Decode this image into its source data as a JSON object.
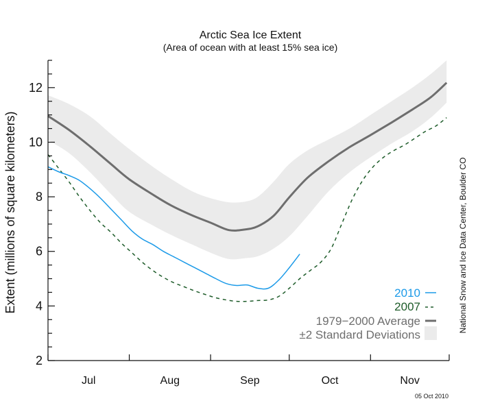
{
  "chart_data": {
    "type": "line",
    "title": "Arctic Sea Ice Extent",
    "subtitle": "(Area of ocean with at least 15% sea ice)",
    "xlabel": "",
    "ylabel": "Extent (millions of square kilometers)",
    "x_unit": "days since Jul 1",
    "xlim": [
      0,
      153
    ],
    "ylim": [
      2,
      13
    ],
    "yticks": [
      2,
      4,
      6,
      8,
      10,
      12
    ],
    "yticks_minor_step": 0.5,
    "month_boundaries": [
      0,
      31,
      62,
      92,
      123,
      153
    ],
    "month_labels": [
      "Jul",
      "Aug",
      "Sep",
      "Oct",
      "Nov"
    ],
    "grid": false,
    "legend_position": "bottom-right",
    "credit": "National Snow and Ice Data Center, Boulder CO",
    "date_stamp": "05 Oct 2010",
    "colors": {
      "2010": "#1b9ae8",
      "2007": "#1e5c2a",
      "average": "#6e6e6e",
      "band": "#ebebeb"
    },
    "legend": [
      {
        "label": "2010",
        "key": "2010",
        "style": "solid"
      },
      {
        "label": "2007",
        "key": "2007",
        "style": "dashed"
      },
      {
        "label": "1979−2000 Average",
        "key": "average",
        "style": "thick"
      },
      {
        "label": "±2 Standard Deviations",
        "key": "band",
        "style": "box"
      }
    ],
    "series": [
      {
        "name": "1979-2000 Average",
        "x": [
          0,
          8,
          16,
          24,
          31,
          40,
          47,
          55,
          62,
          69,
          75,
          80,
          86,
          92,
          99,
          107,
          115,
          123,
          131,
          139,
          146,
          152
        ],
        "values": [
          10.96,
          10.45,
          9.85,
          9.2,
          8.64,
          8.08,
          7.68,
          7.32,
          7.05,
          6.78,
          6.8,
          6.92,
          7.3,
          7.98,
          8.7,
          9.3,
          9.82,
          10.26,
          10.72,
          11.2,
          11.65,
          12.18
        ]
      },
      {
        "name": "+2 Std Dev",
        "x": [
          0,
          8,
          16,
          24,
          31,
          40,
          47,
          55,
          62,
          69,
          75,
          80,
          86,
          92,
          99,
          107,
          115,
          123,
          131,
          139,
          146,
          152
        ],
        "values": [
          11.72,
          11.4,
          10.95,
          10.3,
          9.75,
          9.1,
          8.65,
          8.2,
          7.95,
          7.8,
          7.82,
          8.0,
          8.55,
          9.2,
          9.7,
          10.1,
          10.5,
          11.0,
          11.5,
          12.0,
          12.5,
          13.0
        ]
      },
      {
        "name": "-2 Std Dev",
        "x": [
          0,
          8,
          16,
          24,
          31,
          40,
          47,
          55,
          62,
          69,
          75,
          80,
          86,
          92,
          99,
          107,
          115,
          123,
          131,
          139,
          146,
          152
        ],
        "values": [
          10.08,
          9.6,
          8.9,
          8.1,
          7.45,
          6.95,
          6.6,
          6.25,
          5.95,
          5.72,
          5.75,
          5.82,
          6.1,
          6.55,
          7.3,
          8.2,
          8.9,
          9.45,
          9.95,
          10.4,
          10.9,
          11.45
        ]
      },
      {
        "name": "2010",
        "x": [
          0,
          4,
          8,
          12,
          16,
          20,
          24,
          28,
          32,
          36,
          40,
          44,
          48,
          52,
          56,
          60,
          64,
          68,
          72,
          76,
          80,
          84,
          88,
          92,
          96
        ],
        "values": [
          9.1,
          8.92,
          8.78,
          8.6,
          8.3,
          7.95,
          7.55,
          7.15,
          6.75,
          6.45,
          6.25,
          6.0,
          5.8,
          5.6,
          5.4,
          5.2,
          5.0,
          4.82,
          4.75,
          4.77,
          4.65,
          4.65,
          4.95,
          5.4,
          5.9
        ]
      },
      {
        "name": "2007",
        "x": [
          0,
          4,
          8,
          12,
          16,
          20,
          24,
          28,
          32,
          36,
          40,
          44,
          48,
          52,
          56,
          60,
          64,
          68,
          72,
          76,
          80,
          84,
          88,
          92,
          96,
          100,
          104,
          108,
          112,
          116,
          120,
          124,
          128,
          132,
          136,
          140,
          144,
          148,
          152
        ],
        "values": [
          9.55,
          9.05,
          8.55,
          8.0,
          7.5,
          7.05,
          6.7,
          6.3,
          5.95,
          5.6,
          5.3,
          5.05,
          4.85,
          4.7,
          4.55,
          4.42,
          4.3,
          4.22,
          4.17,
          4.17,
          4.2,
          4.22,
          4.35,
          4.65,
          5.0,
          5.3,
          5.6,
          6.1,
          7.0,
          7.9,
          8.6,
          9.1,
          9.45,
          9.7,
          9.9,
          10.15,
          10.4,
          10.6,
          10.9
        ]
      }
    ]
  }
}
